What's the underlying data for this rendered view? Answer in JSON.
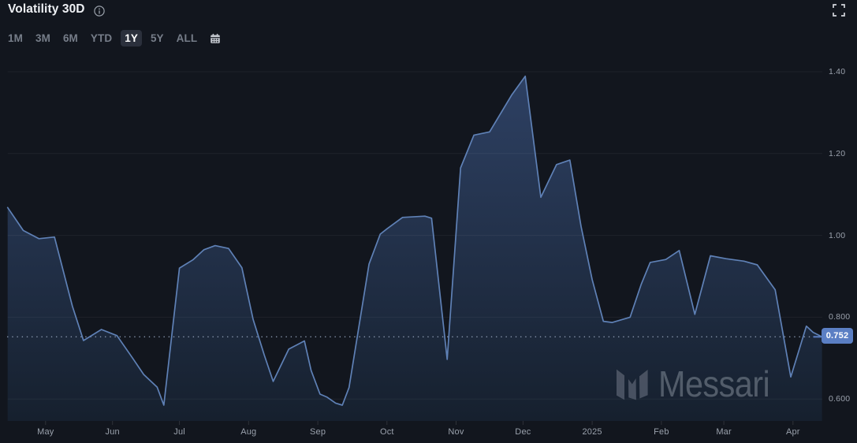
{
  "header": {
    "title": "Volatility 30D",
    "info_icon": "info-circle-icon",
    "fullscreen_icon": "fullscreen-expand-icon"
  },
  "toolbar": {
    "ranges": [
      {
        "label": "1M",
        "active": false
      },
      {
        "label": "3M",
        "active": false
      },
      {
        "label": "6M",
        "active": false
      },
      {
        "label": "YTD",
        "active": false
      },
      {
        "label": "1Y",
        "active": true
      },
      {
        "label": "5Y",
        "active": false
      },
      {
        "label": "ALL",
        "active": false
      }
    ],
    "calendar_icon": "calendar-icon"
  },
  "watermark": {
    "text": "Messari",
    "logo_icon": "messari-logo-icon"
  },
  "colors": {
    "background": "#12161e",
    "line": "#5f81b6",
    "area_top": "#2e4164",
    "area_bottom": "#16202e",
    "gridline": "rgba(255,255,255,0.055)",
    "dotted_line": "#8b99b0",
    "badge": "#5b7fc4",
    "axis_text": "#9aa1ac",
    "tick": "rgba(255,255,255,0.12)"
  },
  "chart_data": {
    "type": "area",
    "title": "Volatility 30D",
    "legend": "none",
    "grid": "horizontal",
    "y_axis_side": "right",
    "x_domain_days": [
      0,
      365
    ],
    "x_domain_note": "days since chart start (mid-April 2024 to mid-April 2025, 1Y range)",
    "y_ticks": [
      {
        "label": "1.40",
        "value": 1.4
      },
      {
        "label": "1.20",
        "value": 1.2
      },
      {
        "label": "1.00",
        "value": 1.0
      },
      {
        "label": "0.800",
        "value": 0.8
      },
      {
        "label": "0.600",
        "value": 0.6
      }
    ],
    "x_ticks": [
      {
        "label": "May",
        "day": 17
      },
      {
        "label": "Jun",
        "day": 47
      },
      {
        "label": "Jul",
        "day": 77
      },
      {
        "label": "Aug",
        "day": 108
      },
      {
        "label": "Sep",
        "day": 139
      },
      {
        "label": "Oct",
        "day": 170
      },
      {
        "label": "Nov",
        "day": 201
      },
      {
        "label": "Dec",
        "day": 231
      },
      {
        "label": "2025",
        "day": 262
      },
      {
        "label": "Feb",
        "day": 293
      },
      {
        "label": "Mar",
        "day": 321
      },
      {
        "label": "Apr",
        "day": 352
      }
    ],
    "last_value": 0.752,
    "last_value_label": "0.752",
    "series": [
      {
        "name": "Volatility 30D",
        "points": [
          [
            0,
            1.068
          ],
          [
            7,
            1.012
          ],
          [
            14,
            0.992
          ],
          [
            21,
            0.996
          ],
          [
            29,
            0.827
          ],
          [
            34,
            0.743
          ],
          [
            42,
            0.77
          ],
          [
            49,
            0.755
          ],
          [
            56,
            0.7
          ],
          [
            61,
            0.66
          ],
          [
            67,
            0.629
          ],
          [
            70,
            0.585
          ],
          [
            77,
            0.92
          ],
          [
            83,
            0.94
          ],
          [
            88,
            0.965
          ],
          [
            93,
            0.975
          ],
          [
            99,
            0.968
          ],
          [
            105,
            0.921
          ],
          [
            110,
            0.795
          ],
          [
            115,
            0.708
          ],
          [
            119,
            0.643
          ],
          [
            126,
            0.722
          ],
          [
            133,
            0.742
          ],
          [
            136,
            0.67
          ],
          [
            140,
            0.612
          ],
          [
            143,
            0.605
          ],
          [
            147,
            0.59
          ],
          [
            150,
            0.585
          ],
          [
            153,
            0.628
          ],
          [
            162,
            0.93
          ],
          [
            167,
            1.003
          ],
          [
            170,
            1.016
          ],
          [
            177,
            1.044
          ],
          [
            187,
            1.047
          ],
          [
            190,
            1.042
          ],
          [
            197,
            0.697
          ],
          [
            203,
            1.165
          ],
          [
            209,
            1.245
          ],
          [
            216,
            1.253
          ],
          [
            226,
            1.344
          ],
          [
            232,
            1.389
          ],
          [
            239,
            1.093
          ],
          [
            246,
            1.173
          ],
          [
            252,
            1.184
          ],
          [
            257,
            1.022
          ],
          [
            262,
            0.892
          ],
          [
            267,
            0.79
          ],
          [
            271,
            0.787
          ],
          [
            279,
            0.8
          ],
          [
            284,
            0.881
          ],
          [
            288,
            0.934
          ],
          [
            295,
            0.941
          ],
          [
            301,
            0.963
          ],
          [
            308,
            0.807
          ],
          [
            315,
            0.95
          ],
          [
            322,
            0.943
          ],
          [
            330,
            0.937
          ],
          [
            336,
            0.928
          ],
          [
            344,
            0.867
          ],
          [
            351,
            0.654
          ],
          [
            358,
            0.778
          ],
          [
            361,
            0.763
          ],
          [
            365,
            0.752
          ]
        ]
      }
    ]
  }
}
